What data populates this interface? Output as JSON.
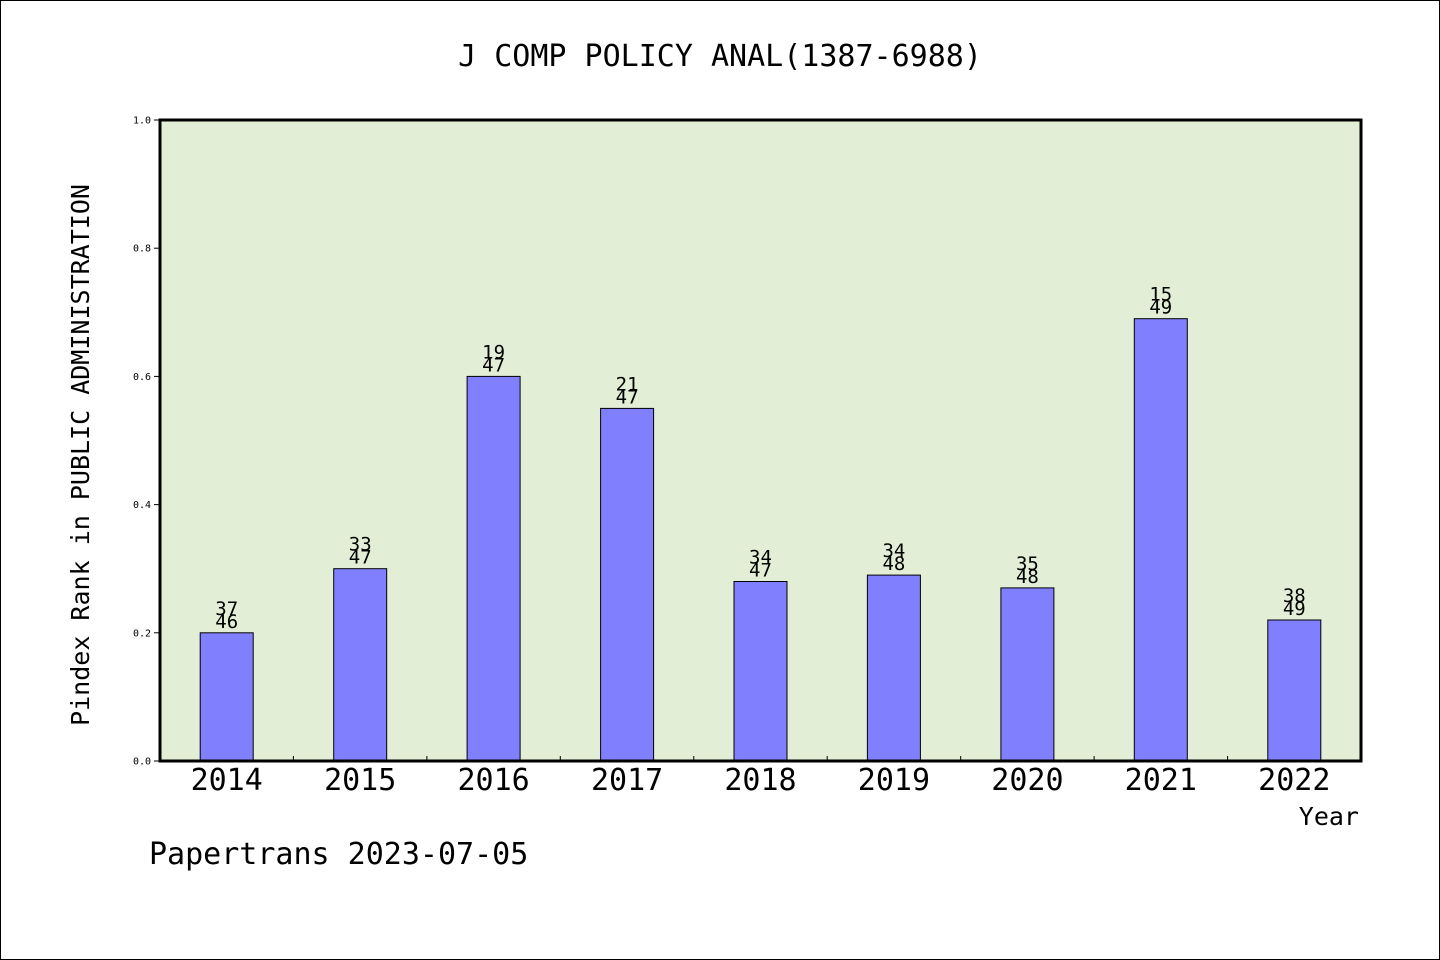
{
  "chart_data": {
    "type": "bar",
    "title": "J COMP POLICY ANAL(1387-6988)",
    "xlabel": "Year",
    "ylabel": "Pindex Rank in PUBLIC ADMINISTRATION",
    "categories": [
      "2014",
      "2015",
      "2016",
      "2017",
      "2018",
      "2019",
      "2020",
      "2021",
      "2022"
    ],
    "values": [
      0.2,
      0.3,
      0.6,
      0.55,
      0.28,
      0.29,
      0.27,
      0.69,
      0.22
    ],
    "rank_labels": [
      {
        "rank": "37",
        "total": "46"
      },
      {
        "rank": "33",
        "total": "47"
      },
      {
        "rank": "19",
        "total": "47"
      },
      {
        "rank": "21",
        "total": "47"
      },
      {
        "rank": "34",
        "total": "47"
      },
      {
        "rank": "34",
        "total": "48"
      },
      {
        "rank": "35",
        "total": "48"
      },
      {
        "rank": "15",
        "total": "49"
      },
      {
        "rank": "38",
        "total": "49"
      }
    ],
    "ylim": [
      0,
      1
    ],
    "yticks": [
      "0.0",
      "0.2",
      "0.4",
      "0.6",
      "0.8",
      "1.0"
    ],
    "grid": false,
    "colors": {
      "bar_fill": "#8080ff",
      "plot_background": "#e2efd6",
      "axis": "#000000"
    }
  },
  "footer": {
    "credit": "Papertrans 2023-07-05"
  }
}
